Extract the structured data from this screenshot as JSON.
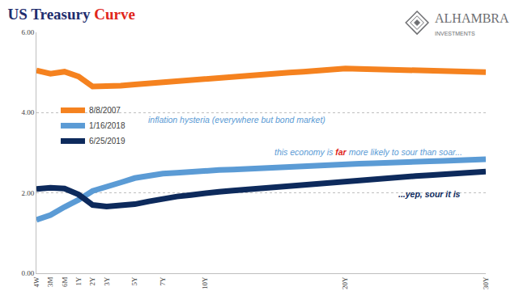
{
  "chart_data": {
    "type": "line",
    "title": "US Treasury Curve",
    "logo": [
      "ALHAMBRA",
      "INVESTMENTS"
    ],
    "categories": [
      "4W",
      "3M",
      "6M",
      "1Y",
      "2Y",
      "3Y",
      null,
      "5Y",
      null,
      "7Y",
      null,
      null,
      "10Y",
      null,
      null,
      null,
      null,
      null,
      null,
      null,
      null,
      null,
      "20Y",
      null,
      null,
      null,
      null,
      null,
      null,
      null,
      null,
      null,
      "30Y"
    ],
    "series": [
      {
        "name": "8/8/2007",
        "color": "#f5821f",
        "values": [
          5.05,
          4.97,
          5.02,
          4.9,
          4.65,
          4.65,
          4.67,
          4.7,
          4.73,
          4.76,
          4.79,
          4.81,
          4.84,
          4.87,
          4.89,
          4.92,
          4.94,
          4.97,
          5.0,
          5.02,
          5.05,
          5.07,
          5.1,
          5.09,
          5.08,
          5.07,
          5.06,
          5.06,
          5.05,
          5.04,
          5.03,
          5.02,
          5.01
        ]
      },
      {
        "name": "1/16/2018",
        "color": "#5b9bd5",
        "values": [
          1.33,
          1.45,
          1.65,
          1.83,
          2.05,
          2.14,
          2.26,
          2.37,
          2.43,
          2.48,
          2.5,
          2.53,
          2.55,
          2.57,
          2.58,
          2.6,
          2.62,
          2.64,
          2.65,
          2.67,
          2.69,
          2.7,
          2.72,
          2.73,
          2.74,
          2.76,
          2.77,
          2.78,
          2.79,
          2.8,
          2.82,
          2.83,
          2.84
        ]
      },
      {
        "name": "6/25/2019",
        "color": "#0d2a5c",
        "values": [
          2.1,
          2.13,
          2.11,
          1.96,
          1.7,
          1.66,
          1.69,
          1.72,
          1.79,
          1.86,
          1.91,
          1.95,
          2.0,
          2.03,
          2.06,
          2.09,
          2.12,
          2.15,
          2.18,
          2.21,
          2.24,
          2.27,
          2.3,
          2.32,
          2.35,
          2.37,
          2.39,
          2.42,
          2.44,
          2.46,
          2.48,
          2.51,
          2.53
        ]
      }
    ],
    "annotations": [
      {
        "text": "inflation hysteria (everywhere but bond market)",
        "color": "#5b9bd5"
      },
      {
        "text": "this economy is far more likely to sour than soar...",
        "emphasis": "far",
        "color": "#5b9bd5"
      },
      {
        "text": "...yep, sour it is",
        "color": "#0d2a5c"
      }
    ],
    "ylim": [
      0,
      6
    ],
    "yticks": [
      {
        "value": 0,
        "label": "0.00"
      },
      {
        "value": 2,
        "label": "2.00"
      },
      {
        "value": 4,
        "label": "4.00"
      },
      {
        "value": 6,
        "label": "6.00"
      }
    ],
    "grid": true,
    "legend": "upper left"
  }
}
